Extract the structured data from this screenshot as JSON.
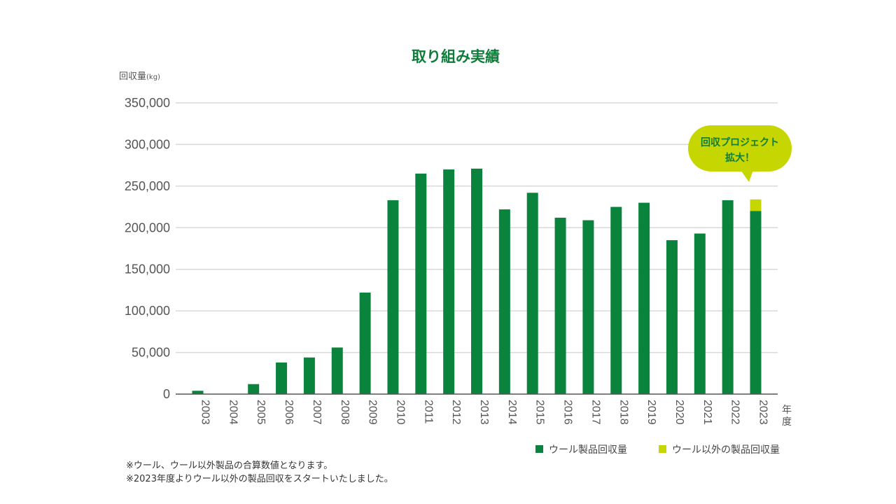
{
  "chart_data": {
    "type": "bar",
    "stacked": true,
    "title": "取り組み実績",
    "ylabel": "回収量",
    "ylabel_unit": "(kg)",
    "xlabel": "年度",
    "ylim": [
      0,
      350000
    ],
    "yticks": [
      0,
      50000,
      100000,
      150000,
      200000,
      250000,
      300000,
      350000
    ],
    "ytick_labels": [
      "0",
      "50,000",
      "100,000",
      "150,000",
      "200,000",
      "250,000",
      "300,000",
      "350,000"
    ],
    "grid": true,
    "categories": [
      "2003",
      "2004",
      "2005",
      "2006",
      "2007",
      "2008",
      "2009",
      "2010",
      "2011",
      "2012",
      "2013",
      "2014",
      "2015",
      "2016",
      "2017",
      "2018",
      "2019",
      "2020",
      "2021",
      "2022",
      "2023"
    ],
    "series": [
      {
        "name": "ウール製品回収量",
        "color": "#0a843d",
        "values": [
          4000,
          0,
          12000,
          38000,
          44000,
          56000,
          122000,
          233000,
          265000,
          270000,
          271000,
          222000,
          242000,
          212000,
          209000,
          225000,
          230000,
          185000,
          193000,
          233000,
          220000
        ]
      },
      {
        "name": "ウール以外の製品回収量",
        "color": "#c6d600",
        "values": [
          0,
          0,
          0,
          0,
          0,
          0,
          0,
          0,
          0,
          0,
          0,
          0,
          0,
          0,
          0,
          0,
          0,
          0,
          0,
          0,
          14000
        ]
      }
    ],
    "annotation": {
      "line1": "回収プロジェクト",
      "line2": "拡大！",
      "category": "2023"
    },
    "legend_position": "bottom-right"
  },
  "notes": [
    "※ウール、ウール以外製品の合算数値となります。",
    "※2023年度よりウール以外の製品回収をスタートいたしました。"
  ]
}
